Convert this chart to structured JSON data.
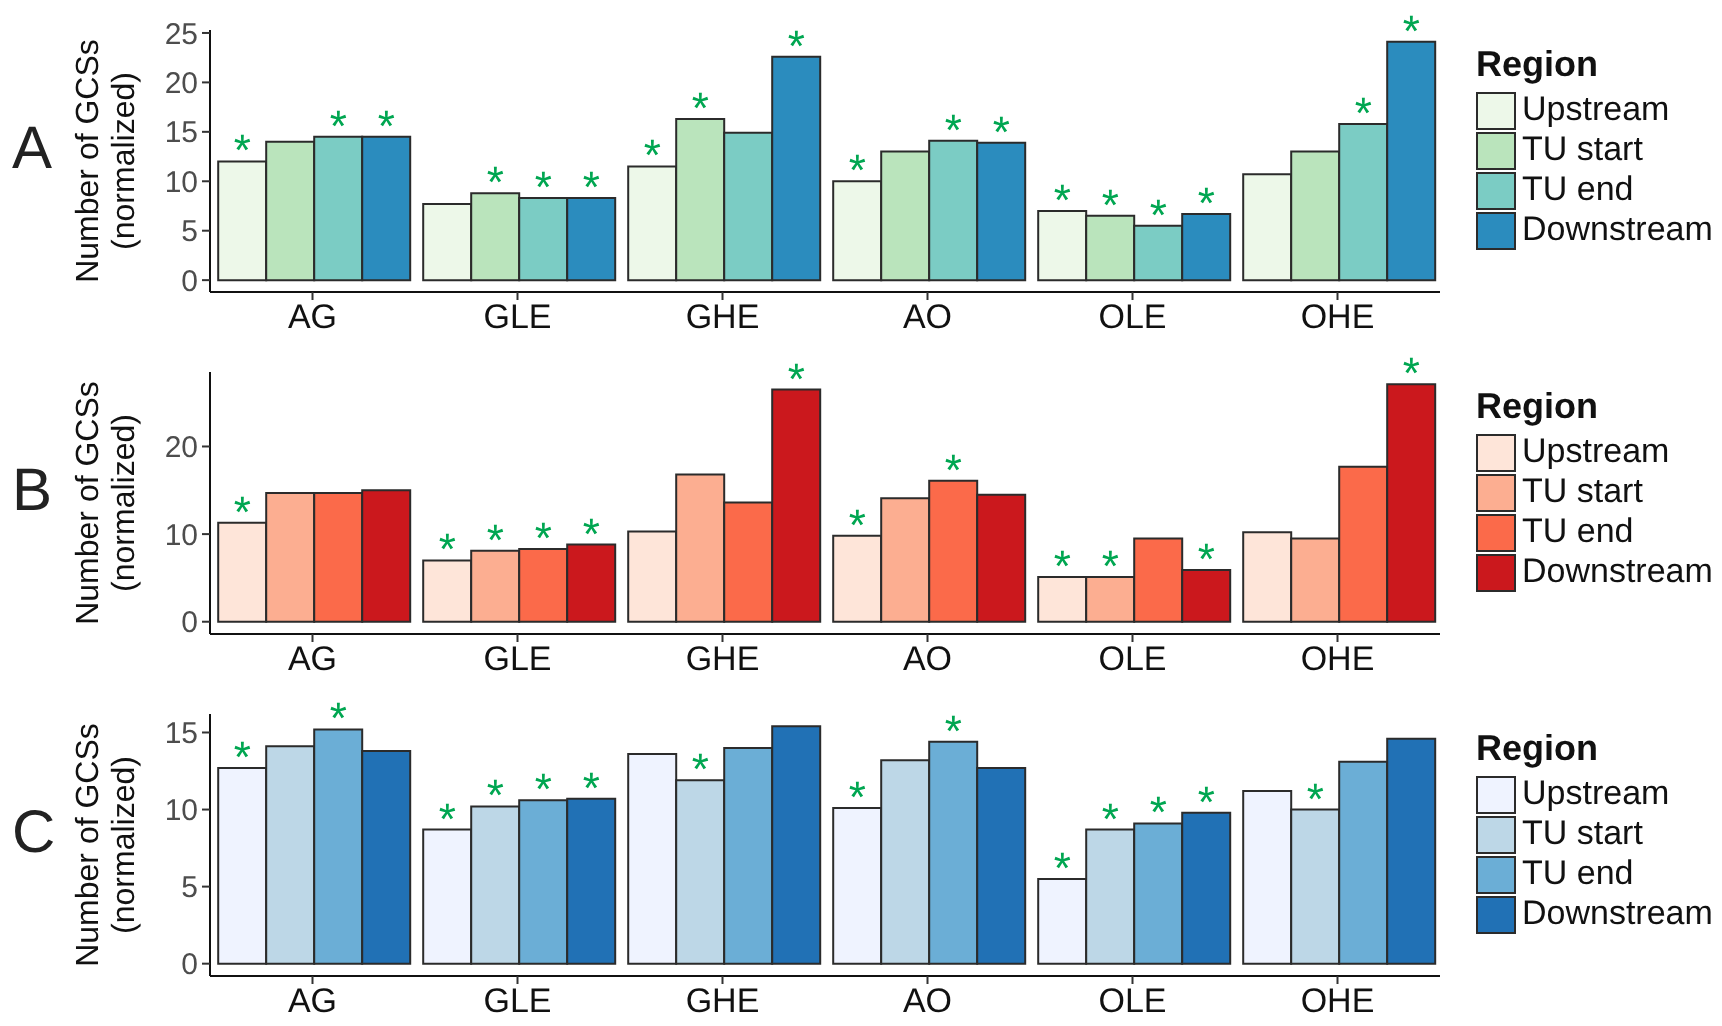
{
  "chart_data": [
    {
      "type": "bar",
      "title": "A",
      "ylabel": "Number of GCSs\n(normalized)",
      "legend_title": "Region",
      "legend": "right",
      "categories": [
        "AG",
        "GLE",
        "GHE",
        "AO",
        "OLE",
        "OHE"
      ],
      "ylim": [
        -1.2,
        25.3
      ],
      "yticks": [
        0,
        5,
        10,
        15,
        20,
        25
      ],
      "series": [
        {
          "name": "Upstream",
          "color": "#edf8e9",
          "values": [
            12.0,
            7.7,
            11.5,
            10.0,
            7.0,
            10.7
          ],
          "value_labels": [
            "*",
            null,
            "*",
            "*",
            "*",
            null
          ]
        },
        {
          "name": "TU start",
          "color": "#bae4bc",
          "values": [
            14.0,
            8.8,
            16.3,
            13.0,
            6.5,
            13.0
          ],
          "value_labels": [
            null,
            "*",
            "*",
            null,
            "*",
            null
          ]
        },
        {
          "name": "TU end",
          "color": "#7bccc4",
          "values": [
            14.5,
            8.3,
            14.9,
            14.1,
            5.5,
            15.8
          ],
          "value_labels": [
            "*",
            "*",
            null,
            "*",
            "*",
            "*"
          ]
        },
        {
          "name": "Downstream",
          "color": "#2b8cbe",
          "values": [
            14.5,
            8.3,
            22.6,
            13.9,
            6.7,
            24.1
          ],
          "value_labels": [
            "*",
            "*",
            "*",
            "*",
            "*",
            "*"
          ]
        }
      ]
    },
    {
      "type": "bar",
      "title": "B",
      "ylabel": "Number of GCSs\n(normalized)",
      "legend_title": "Region",
      "legend": "right",
      "categories": [
        "AG",
        "GLE",
        "GHE",
        "AO",
        "OLE",
        "OHE"
      ],
      "ylim": [
        -1.4,
        28.5
      ],
      "yticks": [
        0,
        10,
        20
      ],
      "series": [
        {
          "name": "Upstream",
          "color": "#fee5d9",
          "values": [
            11.3,
            7.0,
            10.3,
            9.8,
            5.1,
            10.2
          ],
          "value_labels": [
            "*",
            "*",
            null,
            "*",
            "*",
            null
          ]
        },
        {
          "name": "TU start",
          "color": "#fcae91",
          "values": [
            14.7,
            8.1,
            16.8,
            14.1,
            5.1,
            9.5
          ],
          "value_labels": [
            null,
            "*",
            null,
            null,
            "*",
            null
          ]
        },
        {
          "name": "TU end",
          "color": "#fb6a4a",
          "values": [
            14.7,
            8.3,
            13.6,
            16.1,
            9.5,
            17.7
          ],
          "value_labels": [
            null,
            "*",
            null,
            "*",
            null,
            null
          ]
        },
        {
          "name": "Downstream",
          "color": "#cb181d",
          "values": [
            15.0,
            8.8,
            26.5,
            14.5,
            5.9,
            27.1
          ],
          "value_labels": [
            null,
            "*",
            "*",
            null,
            "*",
            "*"
          ]
        }
      ]
    },
    {
      "type": "bar",
      "title": "C",
      "ylabel": "Number of GCSs\n(normalized)",
      "legend_title": "Region",
      "legend": "right",
      "categories": [
        "AG",
        "GLE",
        "GHE",
        "AO",
        "OLE",
        "OHE"
      ],
      "ylim": [
        -0.8,
        16.2
      ],
      "yticks": [
        0,
        5,
        10,
        15
      ],
      "series": [
        {
          "name": "Upstream",
          "color": "#eff3ff",
          "values": [
            12.7,
            8.7,
            13.6,
            10.1,
            5.5,
            11.2
          ],
          "value_labels": [
            "*",
            "*",
            null,
            "*",
            "*",
            null
          ]
        },
        {
          "name": "TU start",
          "color": "#bdd7e7",
          "values": [
            14.1,
            10.2,
            11.9,
            13.2,
            8.7,
            10.0
          ],
          "value_labels": [
            null,
            "*",
            "*",
            null,
            "*",
            "*"
          ]
        },
        {
          "name": "TU end",
          "color": "#6baed6",
          "values": [
            15.2,
            10.6,
            14.0,
            14.4,
            9.1,
            13.1
          ],
          "value_labels": [
            "*",
            "*",
            null,
            "*",
            "*",
            null
          ]
        },
        {
          "name": "Downstream",
          "color": "#2171b5",
          "values": [
            13.8,
            10.7,
            15.4,
            12.7,
            9.8,
            14.6
          ],
          "value_labels": [
            null,
            "*",
            null,
            null,
            "*",
            null
          ]
        }
      ]
    }
  ]
}
